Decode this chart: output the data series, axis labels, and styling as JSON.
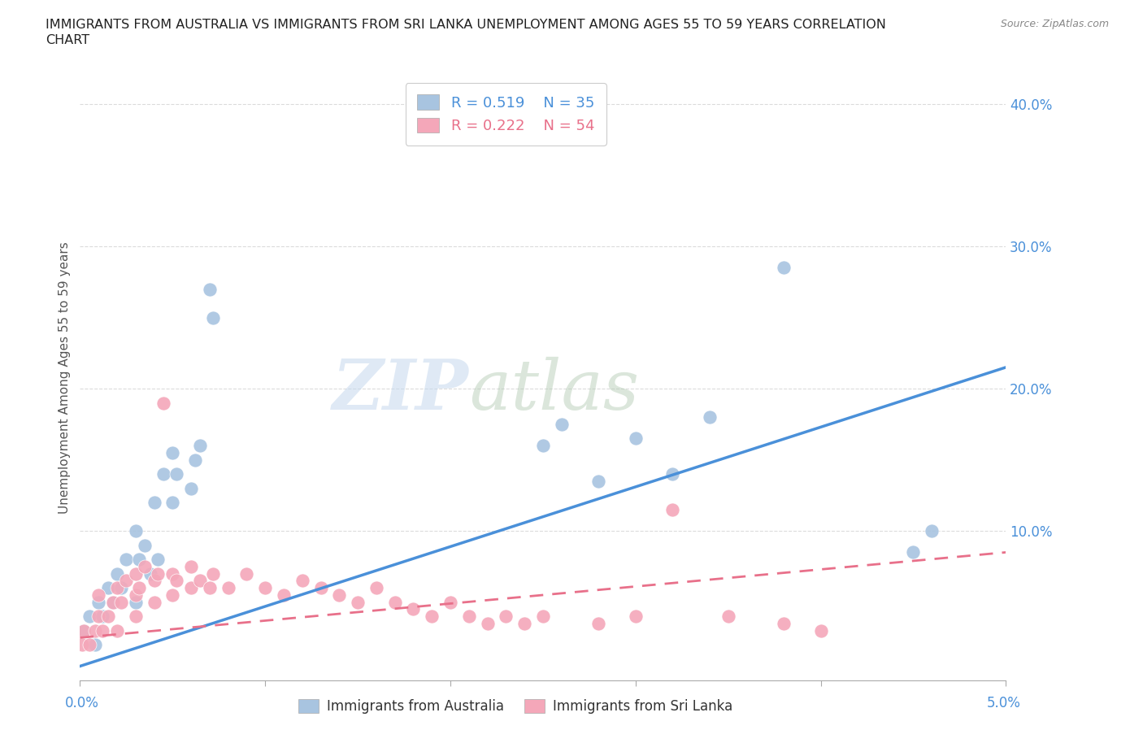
{
  "title_line1": "IMMIGRANTS FROM AUSTRALIA VS IMMIGRANTS FROM SRI LANKA UNEMPLOYMENT AMONG AGES 55 TO 59 YEARS CORRELATION",
  "title_line2": "CHART",
  "source": "Source: ZipAtlas.com",
  "ylabel": "Unemployment Among Ages 55 to 59 years",
  "xlim": [
    0,
    0.05
  ],
  "ylim": [
    -0.005,
    0.42
  ],
  "australia_color": "#a8c4e0",
  "srilanka_color": "#f4a7b9",
  "australia_line_color": "#4a90d9",
  "srilanka_line_color": "#e8708a",
  "legend_australia_R": "0.519",
  "legend_australia_N": "35",
  "legend_srilanka_R": "0.222",
  "legend_srilanka_N": "54",
  "australia_x": [
    0.0002,
    0.0005,
    0.0008,
    0.001,
    0.0012,
    0.0015,
    0.0018,
    0.002,
    0.0022,
    0.0025,
    0.003,
    0.003,
    0.0032,
    0.0035,
    0.0038,
    0.004,
    0.0042,
    0.0045,
    0.005,
    0.005,
    0.0052,
    0.006,
    0.0062,
    0.0065,
    0.007,
    0.0072,
    0.025,
    0.026,
    0.028,
    0.03,
    0.032,
    0.034,
    0.038,
    0.045,
    0.046
  ],
  "australia_y": [
    0.03,
    0.04,
    0.02,
    0.05,
    0.04,
    0.06,
    0.05,
    0.07,
    0.06,
    0.08,
    0.05,
    0.1,
    0.08,
    0.09,
    0.07,
    0.12,
    0.08,
    0.14,
    0.12,
    0.155,
    0.14,
    0.13,
    0.15,
    0.16,
    0.27,
    0.25,
    0.16,
    0.175,
    0.135,
    0.165,
    0.14,
    0.18,
    0.285,
    0.085,
    0.1
  ],
  "srilanka_x": [
    0.0001,
    0.0002,
    0.0005,
    0.0008,
    0.001,
    0.001,
    0.0012,
    0.0015,
    0.0018,
    0.002,
    0.002,
    0.0022,
    0.0025,
    0.003,
    0.003,
    0.003,
    0.0032,
    0.0035,
    0.004,
    0.004,
    0.0042,
    0.0045,
    0.005,
    0.005,
    0.0052,
    0.006,
    0.006,
    0.0065,
    0.007,
    0.0072,
    0.008,
    0.009,
    0.01,
    0.011,
    0.012,
    0.013,
    0.014,
    0.015,
    0.016,
    0.017,
    0.018,
    0.019,
    0.02,
    0.021,
    0.022,
    0.023,
    0.024,
    0.025,
    0.028,
    0.03,
    0.032,
    0.035,
    0.038,
    0.04
  ],
  "srilanka_y": [
    0.02,
    0.03,
    0.02,
    0.03,
    0.04,
    0.055,
    0.03,
    0.04,
    0.05,
    0.03,
    0.06,
    0.05,
    0.065,
    0.04,
    0.055,
    0.07,
    0.06,
    0.075,
    0.05,
    0.065,
    0.07,
    0.19,
    0.055,
    0.07,
    0.065,
    0.06,
    0.075,
    0.065,
    0.06,
    0.07,
    0.06,
    0.07,
    0.06,
    0.055,
    0.065,
    0.06,
    0.055,
    0.05,
    0.06,
    0.05,
    0.045,
    0.04,
    0.05,
    0.04,
    0.035,
    0.04,
    0.035,
    0.04,
    0.035,
    0.04,
    0.115,
    0.04,
    0.035,
    0.03
  ],
  "aus_line_x": [
    0.0,
    0.05
  ],
  "aus_line_y": [
    0.005,
    0.215
  ],
  "slk_line_x": [
    0.0,
    0.05
  ],
  "slk_line_y": [
    0.025,
    0.085
  ],
  "watermark_zip": "ZIP",
  "watermark_atlas": "atlas",
  "background_color": "#ffffff",
  "grid_color": "#cccccc",
  "grid_alpha": 0.7
}
